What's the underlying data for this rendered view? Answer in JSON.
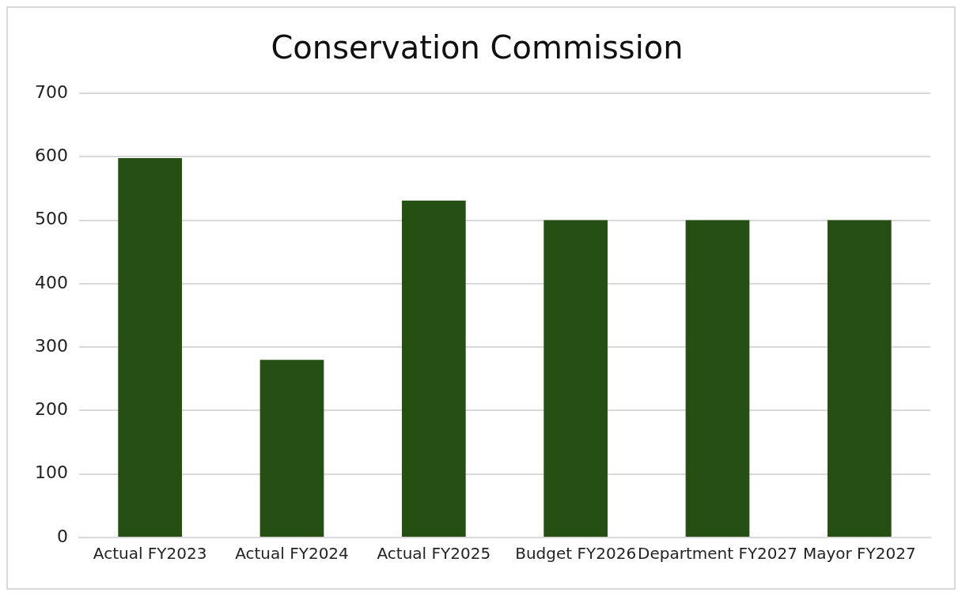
{
  "chart_data": {
    "type": "bar",
    "title": "Conservation Commission",
    "categories": [
      "Actual FY2023",
      "Actual FY2024",
      "Actual FY2025",
      "Budget FY2026",
      "Department FY2027",
      "Mayor FY2027"
    ],
    "values": [
      598,
      280,
      531,
      500,
      500,
      500
    ],
    "color": "#264f14",
    "ylim": [
      0,
      700
    ],
    "yticks": [
      0,
      100,
      200,
      300,
      400,
      500,
      600,
      700
    ],
    "grid": "y",
    "legend": false
  }
}
